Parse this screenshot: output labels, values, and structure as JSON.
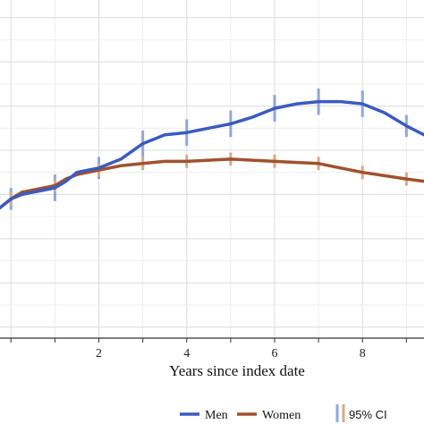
{
  "chart_data": {
    "type": "line",
    "xlabel": "Years since index date",
    "ylabel": "",
    "xlim": [
      -0.25,
      9.4
    ],
    "ylim": [
      -6.5,
      8.8
    ],
    "x_ticks": [
      2,
      4,
      6,
      8
    ],
    "x_tick_labels": [
      "2",
      "4",
      "6",
      "8"
    ],
    "grid": true,
    "legend_position": "bottom",
    "series": [
      {
        "name": "Men",
        "color": "#3b5bc0",
        "ci_color": "#8fa6e0",
        "x": [
          -0.25,
          0.0,
          0.25,
          0.5,
          0.75,
          1.0,
          1.25,
          1.5,
          1.75,
          2.0,
          2.5,
          3.0,
          3.5,
          4.0,
          4.5,
          5.0,
          5.5,
          6.0,
          6.5,
          7.0,
          7.5,
          8.0,
          8.5,
          9.0,
          9.4
        ],
        "y": [
          -0.6,
          -0.2,
          0.0,
          0.1,
          0.2,
          0.3,
          0.6,
          1.0,
          1.1,
          1.2,
          1.6,
          2.3,
          2.7,
          2.8,
          3.0,
          3.2,
          3.5,
          3.9,
          4.1,
          4.2,
          4.2,
          4.1,
          3.7,
          3.1,
          2.7
        ],
        "ci_x": [
          0.0,
          1.0,
          2.0,
          3.0,
          4.0,
          5.0,
          6.0,
          7.0,
          8.0,
          9.0
        ],
        "ci_low": [
          -0.7,
          -0.3,
          0.7,
          1.7,
          2.2,
          2.6,
          3.3,
          3.6,
          3.5,
          2.6
        ],
        "ci_high": [
          0.3,
          0.9,
          1.7,
          2.9,
          3.4,
          3.8,
          4.5,
          4.8,
          4.7,
          3.6
        ]
      },
      {
        "name": "Women",
        "color": "#a0522d",
        "ci_color": "#d9a88a",
        "x": [
          -0.25,
          0.0,
          0.25,
          0.5,
          0.75,
          1.0,
          1.25,
          1.5,
          1.75,
          2.0,
          2.5,
          3.0,
          3.5,
          4.0,
          4.5,
          5.0,
          5.5,
          6.0,
          6.5,
          7.0,
          7.5,
          8.0,
          8.5,
          9.0,
          9.4
        ],
        "y": [
          -0.6,
          -0.2,
          0.1,
          0.2,
          0.3,
          0.4,
          0.7,
          0.9,
          1.0,
          1.1,
          1.3,
          1.4,
          1.5,
          1.5,
          1.55,
          1.6,
          1.55,
          1.5,
          1.45,
          1.4,
          1.2,
          1.0,
          0.85,
          0.7,
          0.6
        ],
        "ci_x": [
          0.0,
          1.0,
          2.0,
          3.0,
          4.0,
          5.0,
          6.0,
          7.0,
          8.0,
          9.0
        ],
        "ci_low": [
          -0.5,
          0.1,
          0.8,
          1.1,
          1.2,
          1.3,
          1.2,
          1.1,
          0.7,
          0.4
        ],
        "ci_high": [
          0.1,
          0.7,
          1.4,
          1.7,
          1.8,
          1.9,
          1.8,
          1.7,
          1.3,
          1.0
        ]
      }
    ],
    "legend": {
      "entries": [
        "Men",
        "Women"
      ],
      "ci_label": "95% CI",
      "ci_colors": [
        "#8fa6e0",
        "#d9a88a"
      ]
    }
  }
}
